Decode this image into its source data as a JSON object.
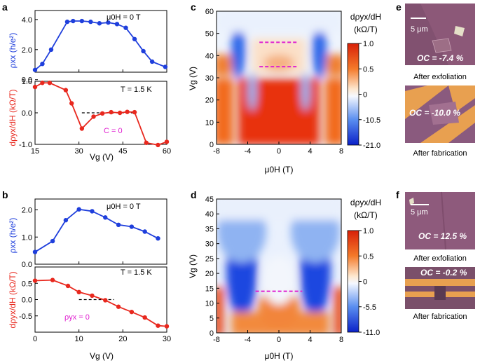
{
  "panels": {
    "a": {
      "letter": "a",
      "top_annotation": "μ0H = 0 T",
      "bottom_annotation": "T = 1.5 K",
      "c_label": "C = 0"
    },
    "b": {
      "letter": "b",
      "top_annotation": "μ0H = 0 T",
      "bottom_annotation": "T = 1.5 K",
      "rho_label": "ρyx = 0"
    },
    "c": {
      "letter": "c",
      "colorbar_title_1": "dρyx/dH",
      "colorbar_title_2": "(kΩ/T)",
      "colorbar_ticks": [
        "1.0",
        "0.5",
        "0",
        "-10.5",
        "-21.0"
      ]
    },
    "d": {
      "letter": "d",
      "colorbar_title_1": "dρyx/dH",
      "colorbar_title_2": "(kΩ/T)",
      "colorbar_ticks": [
        "1.0",
        "0.5",
        "0",
        "-5.5",
        "-11.0"
      ]
    },
    "e": {
      "letter": "e",
      "scale": "5 μm",
      "photo1_label": "OC = -7.4 %",
      "photo2_label": "OC = -10.0 %",
      "caption1": "After exfoliation",
      "caption2": "After fabrication"
    },
    "f": {
      "letter": "f",
      "scale": "5 μm",
      "photo1_label": "OC = 12.5 %",
      "photo2_label": "OC = -0.2 %",
      "caption1": "After exfoliation",
      "caption2": "After fabrication"
    }
  },
  "colors": {
    "blue": "#1f3fdc",
    "red": "#e8281e",
    "magenta": "#e020d0",
    "photo_bg": "#8e5a78",
    "electrode": "#e8a050"
  },
  "chart_data": [
    {
      "type": "line",
      "panel": "a-top",
      "xlabel": "Vg (V)",
      "ylabel": "ρxx (h/e²)",
      "xlim": [
        15,
        60
      ],
      "ylim": [
        0.5,
        4.6
      ],
      "xticks": [
        "15",
        "30",
        "45",
        "60"
      ],
      "yticks": [
        "0.0",
        "2.0",
        "4.0"
      ],
      "series": [
        {
          "x": [
            15,
            17.5,
            20.5,
            26,
            28,
            31,
            34,
            37,
            40,
            43,
            46,
            49,
            52,
            55,
            59.5
          ],
          "values": [
            0.65,
            1.05,
            2.0,
            3.85,
            3.9,
            3.9,
            3.85,
            3.75,
            3.8,
            3.7,
            3.45,
            2.7,
            1.9,
            1.2,
            0.85
          ]
        }
      ]
    },
    {
      "type": "line",
      "panel": "a-bottom",
      "xlabel": "Vg (V)",
      "ylabel": "dρyx/dH (kΩ/T)",
      "xlim": [
        15,
        60
      ],
      "ylim": [
        -1.0,
        1.0
      ],
      "xticks": [
        "15",
        "30",
        "45",
        "60"
      ],
      "yticks": [
        "-1.0",
        "0.0",
        "1.0"
      ],
      "series": [
        {
          "x": [
            15,
            17.5,
            20,
            25.5,
            27.5,
            31,
            35,
            38,
            41,
            44,
            46.5,
            49,
            53,
            57,
            60
          ],
          "values": [
            0.82,
            0.95,
            0.95,
            0.72,
            0.3,
            -0.5,
            -0.12,
            -0.02,
            0.02,
            0.0,
            0.03,
            0.02,
            -0.95,
            -1.02,
            -0.92
          ]
        }
      ],
      "reference_line": {
        "x": [
          31,
          49
        ],
        "y": 0.0
      }
    },
    {
      "type": "line",
      "panel": "b-top",
      "xlabel": "Vg (V)",
      "ylabel": "ρxx (h/e²)",
      "xlim": [
        0,
        30
      ],
      "ylim": [
        0.0,
        2.4
      ],
      "xticks": [
        "0",
        "10",
        "20",
        "30"
      ],
      "yticks": [
        "0.0",
        "1.0",
        "2.0"
      ],
      "series": [
        {
          "x": [
            0,
            4,
            7,
            10,
            13,
            16,
            19,
            22,
            25,
            28
          ],
          "values": [
            0.45,
            0.85,
            1.62,
            2.02,
            1.95,
            1.72,
            1.45,
            1.38,
            1.2,
            0.95
          ]
        }
      ]
    },
    {
      "type": "line",
      "panel": "b-bottom",
      "xlabel": "Vg (V)",
      "ylabel": "dρyx/dH (kΩ/T)",
      "xlim": [
        0,
        30
      ],
      "ylim": [
        -1.0,
        1.0
      ],
      "xticks": [
        "0",
        "10",
        "20",
        "30"
      ],
      "yticks": [
        "-0.5",
        "0.0",
        "0.5"
      ],
      "series": [
        {
          "x": [
            0,
            4,
            7.5,
            10,
            13,
            16,
            19,
            22,
            25,
            28,
            30
          ],
          "values": [
            0.58,
            0.6,
            0.42,
            0.23,
            0.12,
            -0.02,
            -0.22,
            -0.38,
            -0.55,
            -0.8,
            -0.82
          ]
        }
      ],
      "reference_line": {
        "x": [
          10,
          18
        ],
        "y": 0.0
      }
    },
    {
      "type": "heatmap",
      "panel": "c",
      "xlabel": "μ0H (T)",
      "ylabel": "Vg (V)",
      "xlim": [
        -8,
        8
      ],
      "ylim": [
        0,
        60
      ],
      "xticks": [
        "-8",
        "-4",
        "0",
        "4",
        "8"
      ],
      "yticks": [
        "0",
        "10",
        "20",
        "30",
        "40",
        "50",
        "60"
      ],
      "dashed_lines": [
        {
          "x": [
            -2.5,
            2.5
          ],
          "y": 46
        },
        {
          "x": [
            -2.5,
            2.5
          ],
          "y": 35
        }
      ]
    },
    {
      "type": "heatmap",
      "panel": "d",
      "xlabel": "μ0H (T)",
      "ylabel": "Vg (V)",
      "xlim": [
        -8,
        8
      ],
      "ylim": [
        0,
        45
      ],
      "xticks": [
        "-8",
        "-4",
        "0",
        "4",
        "8"
      ],
      "yticks": [
        "0",
        "5",
        "10",
        "15",
        "20",
        "25",
        "30",
        "35",
        "40",
        "45"
      ],
      "dashed_lines": [
        {
          "x": [
            -3,
            3
          ],
          "y": 14
        }
      ]
    }
  ]
}
